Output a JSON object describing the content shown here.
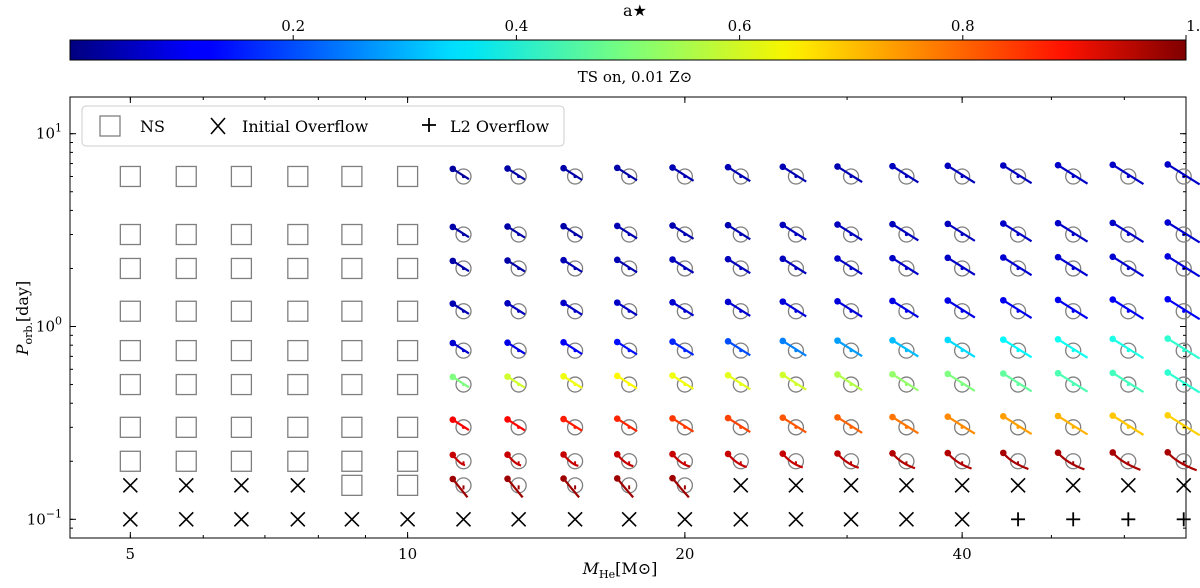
{
  "chart_data": {
    "type": "scatter",
    "subtitle": "TS on, 0.01 Z⊙",
    "xlabel_main": "M",
    "xlabel_sub": "He",
    "xlabel_unit": "[M⊙]",
    "ylabel_main": "P",
    "ylabel_sub": "orb.",
    "ylabel_unit": "[day]",
    "x_scale": "log",
    "y_scale": "log",
    "xlim": [
      4.3,
      70
    ],
    "ylim": [
      0.08,
      15.5
    ],
    "x_ticks": [
      {
        "value": 5,
        "label": "5"
      },
      {
        "value": 10,
        "label": "10"
      },
      {
        "value": 20,
        "label": "20"
      },
      {
        "value": 40,
        "label": "40"
      }
    ],
    "y_ticks": [
      {
        "value": 0.1,
        "base": "10",
        "exp": "−1"
      },
      {
        "value": 1,
        "base": "10",
        "exp": "0"
      },
      {
        "value": 10,
        "base": "10",
        "exp": "1"
      }
    ],
    "colorbar": {
      "label": "a★",
      "min": 0.0,
      "max": 1.0,
      "ticks": [
        {
          "value": 0.2,
          "label": "0.2"
        },
        {
          "value": 0.4,
          "label": "0.4"
        },
        {
          "value": 0.6,
          "label": "0.6"
        },
        {
          "value": 0.8,
          "label": "0.8"
        },
        {
          "value": 1.0,
          "label": "1.0"
        }
      ],
      "colormap": "jet"
    },
    "legend": {
      "position": "top-left",
      "entries": [
        {
          "marker": "square",
          "label": "NS"
        },
        {
          "marker": "x",
          "label": "Initial Overflow"
        },
        {
          "marker": "plus",
          "label": "L2 Overflow"
        }
      ]
    },
    "masses": [
      5.0,
      5.75,
      6.6,
      7.6,
      8.7,
      10.0,
      11.5,
      13.2,
      15.2,
      17.4,
      20.0,
      23.0,
      26.4,
      30.3,
      34.8,
      40.0,
      46.0,
      52.8,
      60.6,
      69.6
    ],
    "periods": [
      0.1,
      0.15,
      0.2,
      0.3,
      0.5,
      0.75,
      1.2,
      2.0,
      3.0,
      6.0
    ],
    "grid_rows": [
      "XXXXXXXXXXXXXXXXPPPP",
      "XXXXSSRRRRRXXXXXXXXX",
      "SSSSSSRRRRRRRRRRRRRR",
      "SSSSSSRRRRRRRRRRRRRR",
      "SSSSSSRRRRRRRRRRRRRR",
      "SSSSSSRRRRRRRRRRRRRR",
      "SSSSSSRRRRRRRRRRRRRR",
      "SSSSSSRRRRRRRRRRRRRR",
      "SSSSSSRRRRRRRRRRRRRR",
      "SSSSSSRRRRRRRRRRRRRR"
    ],
    "spin_a_star": [
      [
        null,
        null,
        null,
        null,
        null,
        null,
        null,
        null,
        null,
        null,
        null,
        null,
        null,
        null,
        null,
        null,
        null,
        null,
        null,
        null
      ],
      [
        null,
        null,
        null,
        null,
        null,
        null,
        0.97,
        0.97,
        0.97,
        0.97,
        0.97,
        null,
        null,
        null,
        null,
        null,
        null,
        null,
        null,
        null
      ],
      [
        null,
        null,
        null,
        null,
        null,
        null,
        0.93,
        0.93,
        0.93,
        0.93,
        0.93,
        0.93,
        0.93,
        0.94,
        0.95,
        0.95,
        0.96,
        0.96,
        0.96,
        0.96
      ],
      [
        null,
        null,
        null,
        null,
        null,
        null,
        0.88,
        0.87,
        0.85,
        0.84,
        0.82,
        0.81,
        0.79,
        0.78,
        0.76,
        0.74,
        0.72,
        0.7,
        0.68,
        0.67
      ],
      [
        null,
        null,
        null,
        null,
        null,
        null,
        0.5,
        0.58,
        0.61,
        0.63,
        0.61,
        0.6,
        0.58,
        0.55,
        0.52,
        0.5,
        0.47,
        0.45,
        0.44,
        0.42
      ],
      [
        null,
        null,
        null,
        null,
        null,
        null,
        0.08,
        0.1,
        0.12,
        0.14,
        0.16,
        0.2,
        0.25,
        0.28,
        0.31,
        0.34,
        0.37,
        0.39,
        0.4,
        0.42
      ],
      [
        null,
        null,
        null,
        null,
        null,
        null,
        0.05,
        0.06,
        0.07,
        0.07,
        0.08,
        0.08,
        0.09,
        0.09,
        0.1,
        0.1,
        0.11,
        0.11,
        0.12,
        0.12
      ],
      [
        null,
        null,
        null,
        null,
        null,
        null,
        0.04,
        0.04,
        0.05,
        0.05,
        0.06,
        0.06,
        0.06,
        0.07,
        0.07,
        0.07,
        0.08,
        0.08,
        0.08,
        0.09
      ],
      [
        null,
        null,
        null,
        null,
        null,
        null,
        0.04,
        0.04,
        0.04,
        0.05,
        0.05,
        0.05,
        0.06,
        0.06,
        0.06,
        0.06,
        0.07,
        0.07,
        0.07,
        0.08
      ],
      [
        null,
        null,
        null,
        null,
        null,
        null,
        0.03,
        0.04,
        0.04,
        0.04,
        0.05,
        0.05,
        0.05,
        0.05,
        0.06,
        0.06,
        0.06,
        0.07,
        0.07,
        0.07
      ]
    ]
  }
}
